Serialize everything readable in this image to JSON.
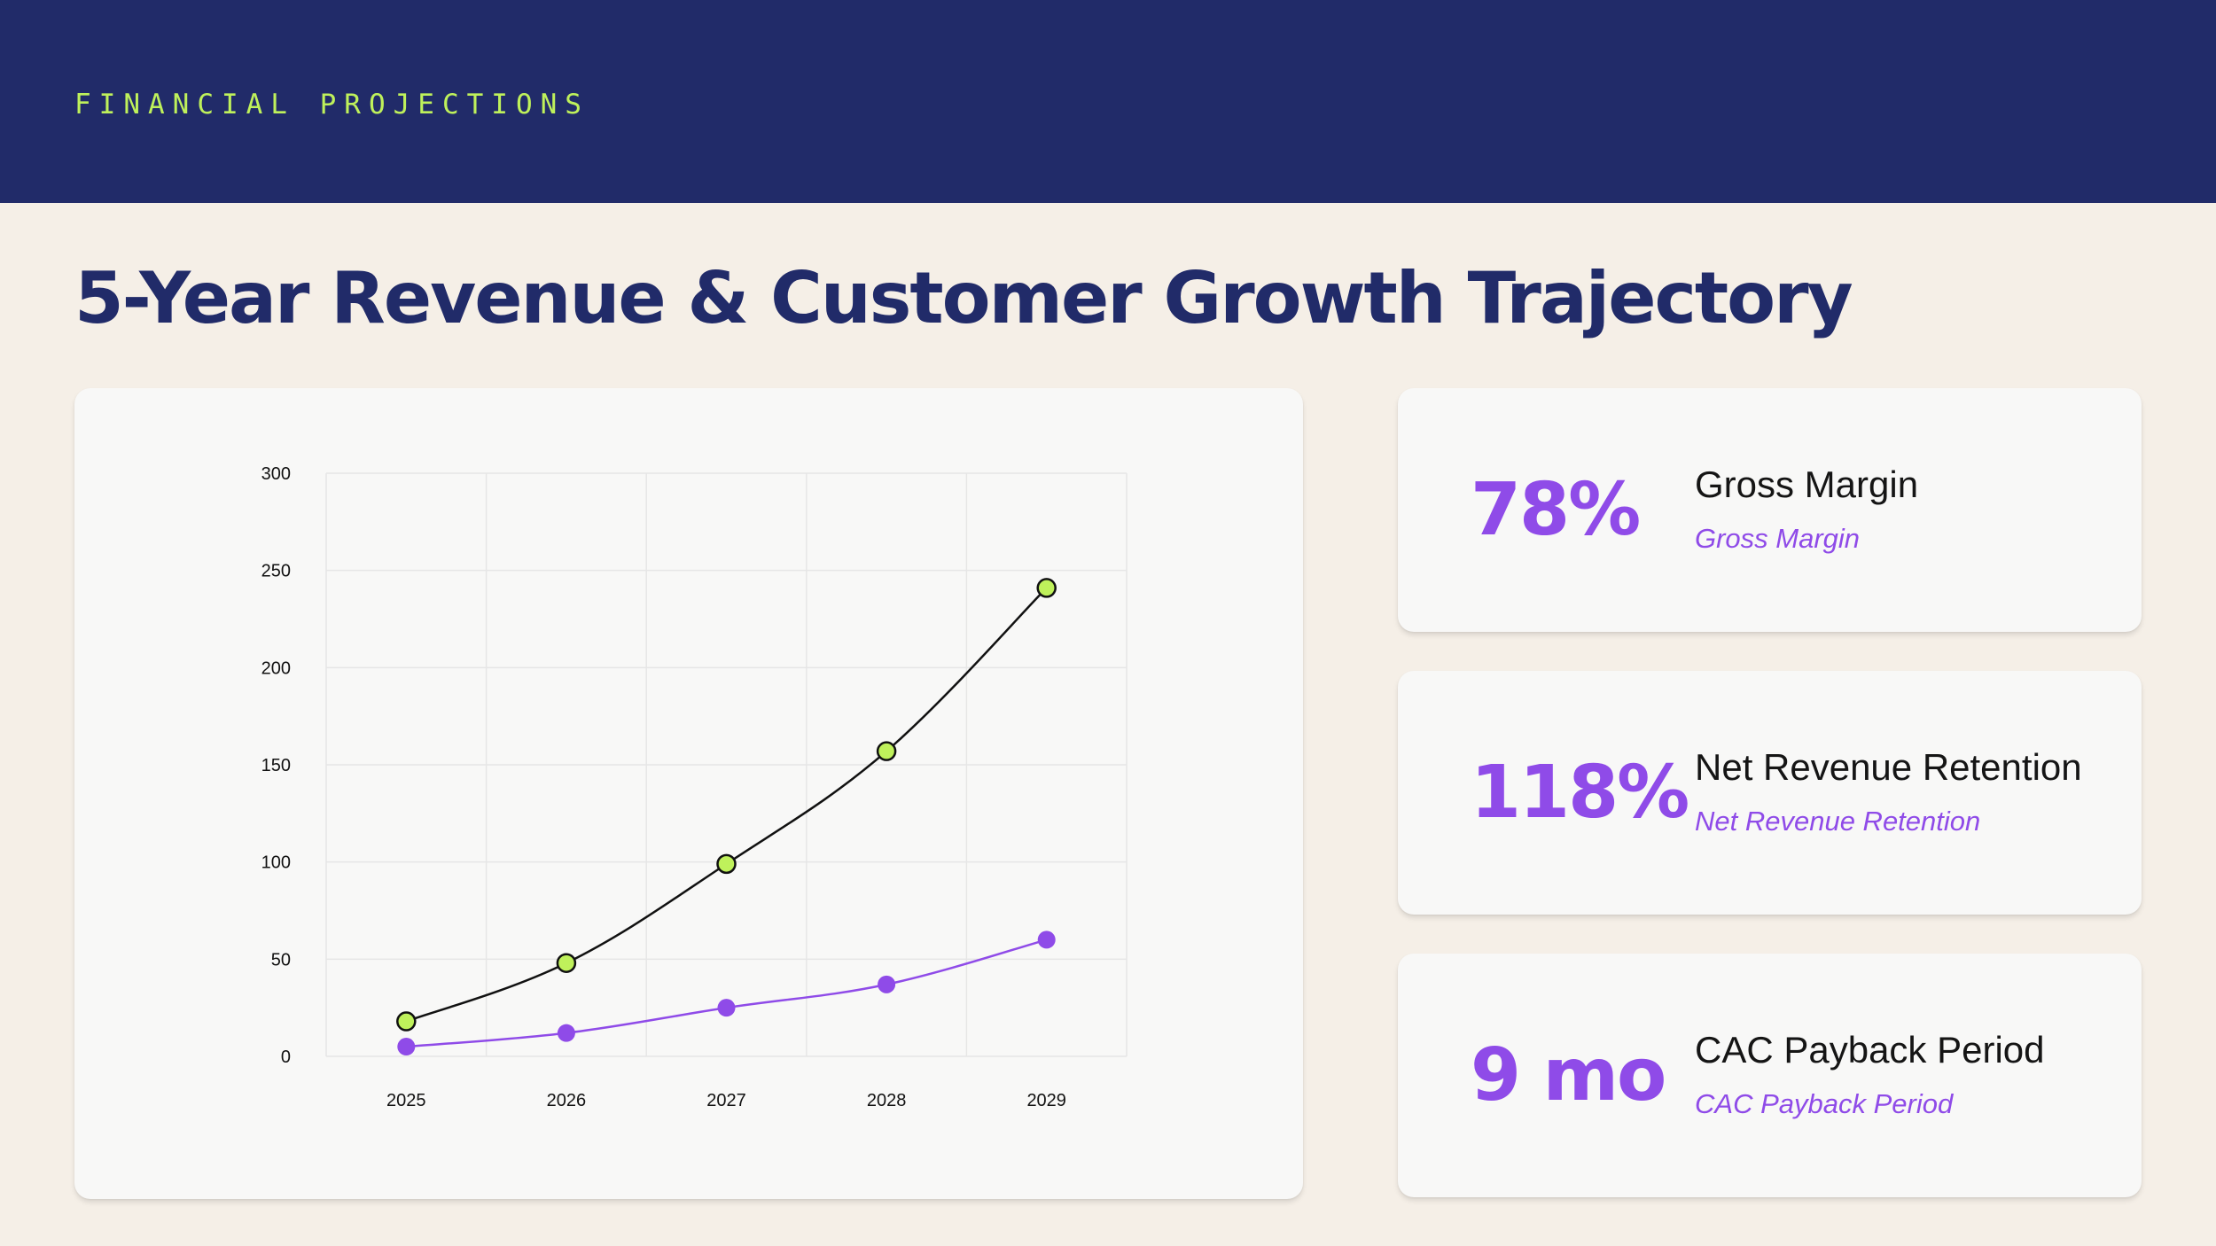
{
  "header": {
    "eyebrow": "FINANCIAL PROJECTIONS"
  },
  "page": {
    "title": "5-Year Revenue & Customer Growth Trajectory"
  },
  "colors": {
    "navy": "#212b69",
    "lime": "#bff15b",
    "purple": "#8f4be8",
    "background": "#f5efe7"
  },
  "chart_data": {
    "type": "line",
    "x": [
      "2025",
      "2026",
      "2027",
      "2028",
      "2029"
    ],
    "series": [
      {
        "values": [
          18,
          48,
          99,
          157,
          241
        ],
        "color": "#bff15b",
        "line_color": "#111111"
      },
      {
        "values": [
          5,
          12,
          25,
          37,
          60
        ],
        "color": "#8f4be8",
        "line_color": "#8f4be8"
      }
    ],
    "ylim": [
      0,
      300
    ],
    "yticks": [
      0,
      50,
      100,
      150,
      200,
      250,
      300
    ],
    "title": "",
    "xlabel": "",
    "ylabel": "",
    "grid": true,
    "legend": "none"
  },
  "kpis": [
    {
      "value": "78%",
      "label": "Gross Margin",
      "sublabel": "Gross Margin"
    },
    {
      "value": "118%",
      "label": "Net Revenue Retention",
      "sublabel": "Net Revenue Retention"
    },
    {
      "value": "9 mo",
      "label": "CAC Payback Period",
      "sublabel": "CAC Payback Period"
    }
  ]
}
